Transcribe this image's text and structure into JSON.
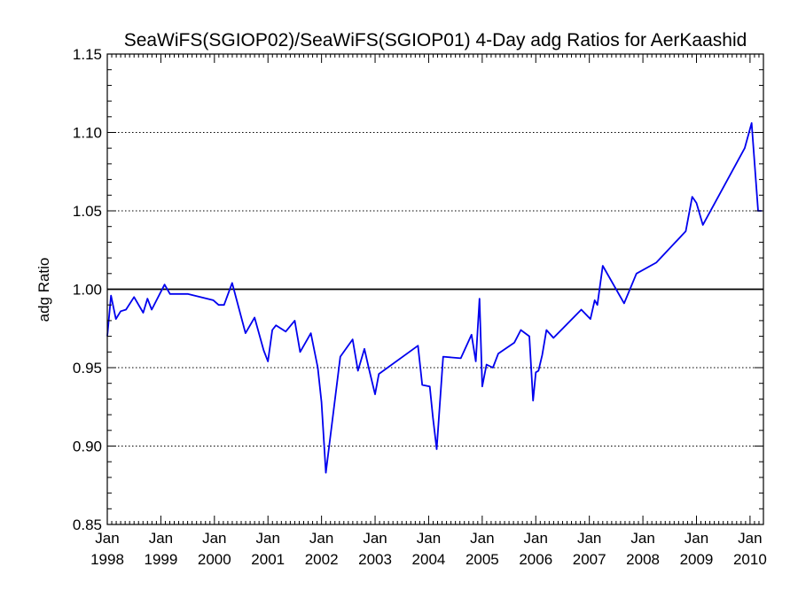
{
  "chart_data": {
    "type": "line",
    "title": "SeaWiFS(SGIOP02)/SeaWiFS(SGIOP01) 4-Day adg Ratios for AerKaashid",
    "xlabel": "",
    "ylabel": "adg Ratio",
    "xlim": [
      1998.0,
      2010.25
    ],
    "ylim": [
      0.85,
      1.15
    ],
    "grid": "horizontal dotted",
    "reference_line": 1.0,
    "line_color": "#0000ee",
    "x_ticks": [
      {
        "value": 1998,
        "month": "Jan",
        "year": "1998"
      },
      {
        "value": 1999,
        "month": "Jan",
        "year": "1999"
      },
      {
        "value": 2000,
        "month": "Jan",
        "year": "2000"
      },
      {
        "value": 2001,
        "month": "Jan",
        "year": "2001"
      },
      {
        "value": 2002,
        "month": "Jan",
        "year": "2002"
      },
      {
        "value": 2003,
        "month": "Jan",
        "year": "2003"
      },
      {
        "value": 2004,
        "month": "Jan",
        "year": "2004"
      },
      {
        "value": 2005,
        "month": "Jan",
        "year": "2005"
      },
      {
        "value": 2006,
        "month": "Jan",
        "year": "2006"
      },
      {
        "value": 2007,
        "month": "Jan",
        "year": "2007"
      },
      {
        "value": 2008,
        "month": "Jan",
        "year": "2008"
      },
      {
        "value": 2009,
        "month": "Jan",
        "year": "2009"
      },
      {
        "value": 2010,
        "month": "Jan",
        "year": "2010"
      }
    ],
    "y_ticks": [
      {
        "value": 0.85,
        "label": "0.85"
      },
      {
        "value": 0.9,
        "label": "0.90"
      },
      {
        "value": 0.95,
        "label": "0.95"
      },
      {
        "value": 1.0,
        "label": "1.00"
      },
      {
        "value": 1.05,
        "label": "1.05"
      },
      {
        "value": 1.1,
        "label": "1.10"
      },
      {
        "value": 1.15,
        "label": "1.15"
      }
    ],
    "series": [
      {
        "x": [
          1998.0,
          1998.07,
          1998.16,
          1998.25,
          1998.35,
          1998.5,
          1998.67,
          1998.75,
          1998.83,
          1999.07,
          1999.17,
          1999.5,
          1999.98,
          2000.08,
          2000.18,
          2000.33,
          2000.58,
          2000.75,
          2000.92,
          2001.0,
          2001.08,
          2001.15,
          2001.33,
          2001.5,
          2001.6,
          2001.8,
          2001.93,
          2002.0,
          2002.08,
          2002.35,
          2002.58,
          2002.68,
          2002.8,
          2002.88,
          2003.0,
          2003.07,
          2003.8,
          2003.88,
          2004.02,
          2004.08,
          2004.15,
          2004.27,
          2004.6,
          2004.8,
          2004.88,
          2004.95,
          2005.0,
          2005.08,
          2005.2,
          2005.3,
          2005.6,
          2005.72,
          2005.88,
          2005.95,
          2006.0,
          2006.05,
          2006.12,
          2006.2,
          2006.33,
          2006.85,
          2007.02,
          2007.1,
          2007.15,
          2007.25,
          2007.65,
          2007.88,
          2008.25,
          2008.8,
          2008.92,
          2009.0,
          2009.12,
          2009.9,
          2010.03,
          2010.15,
          2010.22
        ],
        "values": [
          0.97,
          0.996,
          0.981,
          0.986,
          0.987,
          0.995,
          0.985,
          0.994,
          0.987,
          1.003,
          0.997,
          0.997,
          0.993,
          0.99,
          0.99,
          1.004,
          0.972,
          0.982,
          0.961,
          0.954,
          0.974,
          0.977,
          0.973,
          0.98,
          0.96,
          0.972,
          0.95,
          0.928,
          0.883,
          0.957,
          0.968,
          0.948,
          0.962,
          0.95,
          0.933,
          0.946,
          0.964,
          0.939,
          0.938,
          0.918,
          0.898,
          0.957,
          0.956,
          0.971,
          0.954,
          0.994,
          0.938,
          0.952,
          0.95,
          0.959,
          0.966,
          0.974,
          0.97,
          0.929,
          0.947,
          0.948,
          0.958,
          0.974,
          0.969,
          0.987,
          0.981,
          0.993,
          0.99,
          1.015,
          0.991,
          1.01,
          1.017,
          1.037,
          1.059,
          1.055,
          1.041,
          1.09,
          1.106,
          1.05,
          1.05
        ]
      }
    ]
  }
}
